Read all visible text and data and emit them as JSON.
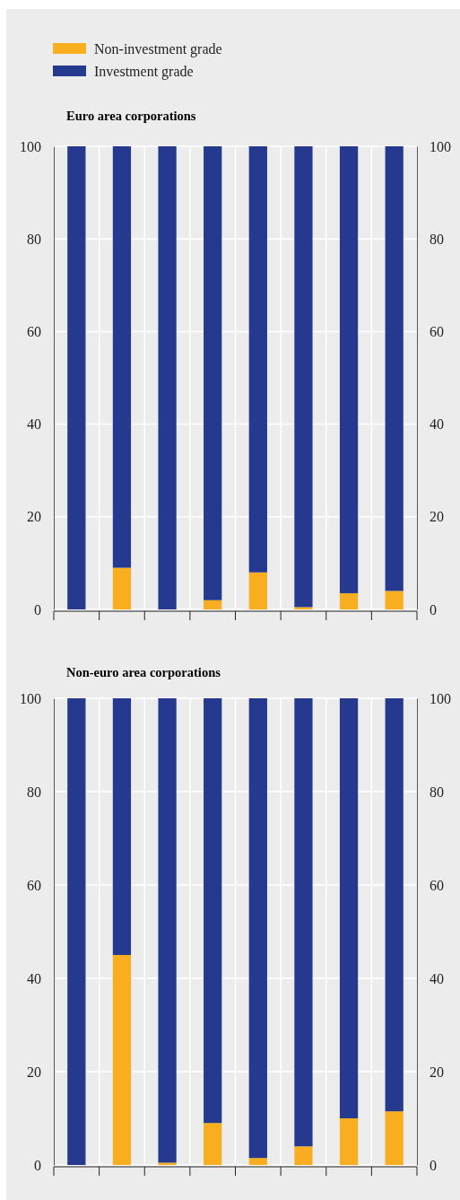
{
  "chart_data": [
    {
      "type": "bar",
      "stacked": true,
      "title": "Euro area corporations",
      "categories": [
        null,
        null,
        null,
        null,
        null,
        null,
        null,
        null
      ],
      "series": [
        {
          "name": "Non-investment grade",
          "color": "#f9ae1f",
          "values": [
            0,
            9,
            0,
            2,
            8,
            0.5,
            3.5,
            4
          ]
        },
        {
          "name": "Investment grade",
          "color": "#25398e",
          "values": [
            100,
            91,
            100,
            98,
            92,
            99.5,
            96.5,
            96
          ]
        }
      ],
      "ylim": [
        0,
        100
      ],
      "yticks": [
        0,
        20,
        40,
        60,
        80,
        100
      ],
      "y2lim": [
        0,
        100
      ],
      "y2ticks": [
        0,
        20,
        40,
        60,
        80,
        100
      ],
      "grid": "y",
      "legend": "top left"
    },
    {
      "type": "bar",
      "stacked": true,
      "title": "Non-euro area corporations",
      "categories": [
        null,
        null,
        null,
        null,
        null,
        null,
        null,
        null
      ],
      "series": [
        {
          "color": "#f9ae1f",
          "values": [
            0,
            45,
            0.5,
            9,
            1.5,
            4,
            10,
            11.5
          ]
        },
        {
          "color": "#25398e",
          "values": [
            100,
            55,
            99.5,
            91,
            98.5,
            96,
            90,
            88.5
          ]
        }
      ],
      "ylim": [
        0,
        100
      ],
      "yticks": [
        0,
        20,
        40,
        60,
        80,
        100
      ],
      "y2lim": [
        0,
        100
      ],
      "y2ticks": [
        0,
        20,
        40,
        60,
        80,
        100
      ],
      "grid": "y",
      "legend": false
    }
  ]
}
